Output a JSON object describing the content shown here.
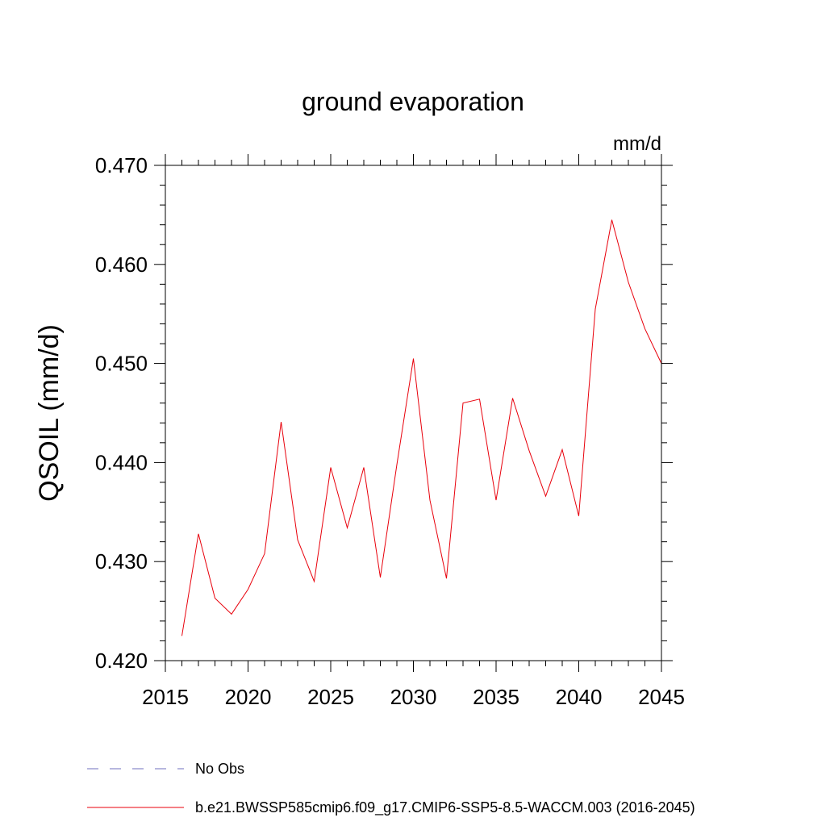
{
  "chart_data": {
    "type": "line",
    "title": "ground evaporation",
    "units": "mm/d",
    "ylabel": "QSOIL  (mm/d)",
    "xlabel": "",
    "xlim": [
      2015,
      2045
    ],
    "ylim": [
      0.42,
      0.47
    ],
    "xticks": [
      2015,
      2020,
      2025,
      2030,
      2035,
      2040,
      2045
    ],
    "yticks": [
      "0.420",
      "0.430",
      "0.440",
      "0.450",
      "0.460",
      "0.470"
    ],
    "yminor_step": 0.002,
    "xminor_step": 1,
    "grid": false,
    "series": [
      {
        "name": "b.e21.BWSSP585cmip6.f09_g17.CMIP6-SSP5-8.5-WACCM.003 (2016-2045)",
        "color": "#e8000b",
        "x": [
          2016,
          2017,
          2018,
          2019,
          2020,
          2021,
          2022,
          2023,
          2024,
          2025,
          2026,
          2027,
          2028,
          2029,
          2030,
          2031,
          2032,
          2033,
          2034,
          2035,
          2036,
          2037,
          2038,
          2039,
          2040,
          2041,
          2042,
          2043,
          2044,
          2045
        ],
        "values": [
          0.4225,
          0.4328,
          0.4263,
          0.4247,
          0.4272,
          0.4308,
          0.4441,
          0.4322,
          0.428,
          0.4395,
          0.4334,
          0.4395,
          0.4284,
          0.4398,
          0.4505,
          0.4362,
          0.4283,
          0.446,
          0.4464,
          0.4362,
          0.4465,
          0.4412,
          0.4366,
          0.4413,
          0.4346,
          0.4555,
          0.4645,
          0.4582,
          0.4535,
          0.45
        ]
      }
    ],
    "legend": [
      {
        "label": "No Obs",
        "style": "dashed",
        "color": "#6f6fbf"
      },
      {
        "label": "b.e21.BWSSP585cmip6.f09_g17.CMIP6-SSP5-8.5-WACCM.003 (2016-2045)",
        "style": "solid",
        "color": "#e8000b"
      }
    ]
  }
}
